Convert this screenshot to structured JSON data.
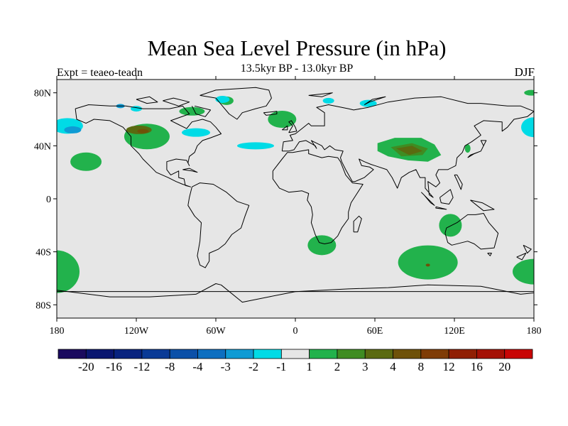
{
  "title": "Mean Sea Level Pressure (in hPa)",
  "subtitle": "13.5kyr BP - 13.0kyr BP",
  "left_note": "Expt = teaeo-teadn",
  "right_note": "DJF",
  "map": {
    "projection": "cylindrical equidistant",
    "lon_ticks": [
      "180",
      "120W",
      "60W",
      "0",
      "60E",
      "120E",
      "180"
    ],
    "lat_ticks": [
      "80N",
      "40N",
      "0",
      "40S",
      "80S"
    ],
    "background_color": "#e6e6e6",
    "coastline_color": "#000000"
  },
  "colorbar": {
    "colors": [
      "#1a0a5e",
      "#0a1670",
      "#08237f",
      "#0a3a96",
      "#0b50a8",
      "#0d6fc0",
      "#0f9bd4",
      "#00dbe6",
      "#e6e6e6",
      "#22b24c",
      "#3f8c22",
      "#5a6a10",
      "#6e5108",
      "#7f3c06",
      "#901f03",
      "#a41005",
      "#c80505"
    ],
    "labels": [
      "-20",
      "-16",
      "-12",
      "-8",
      "-4",
      "-3",
      "-2",
      "-1",
      "1",
      "2",
      "3",
      "4",
      "8",
      "12",
      "16",
      "20"
    ]
  }
}
